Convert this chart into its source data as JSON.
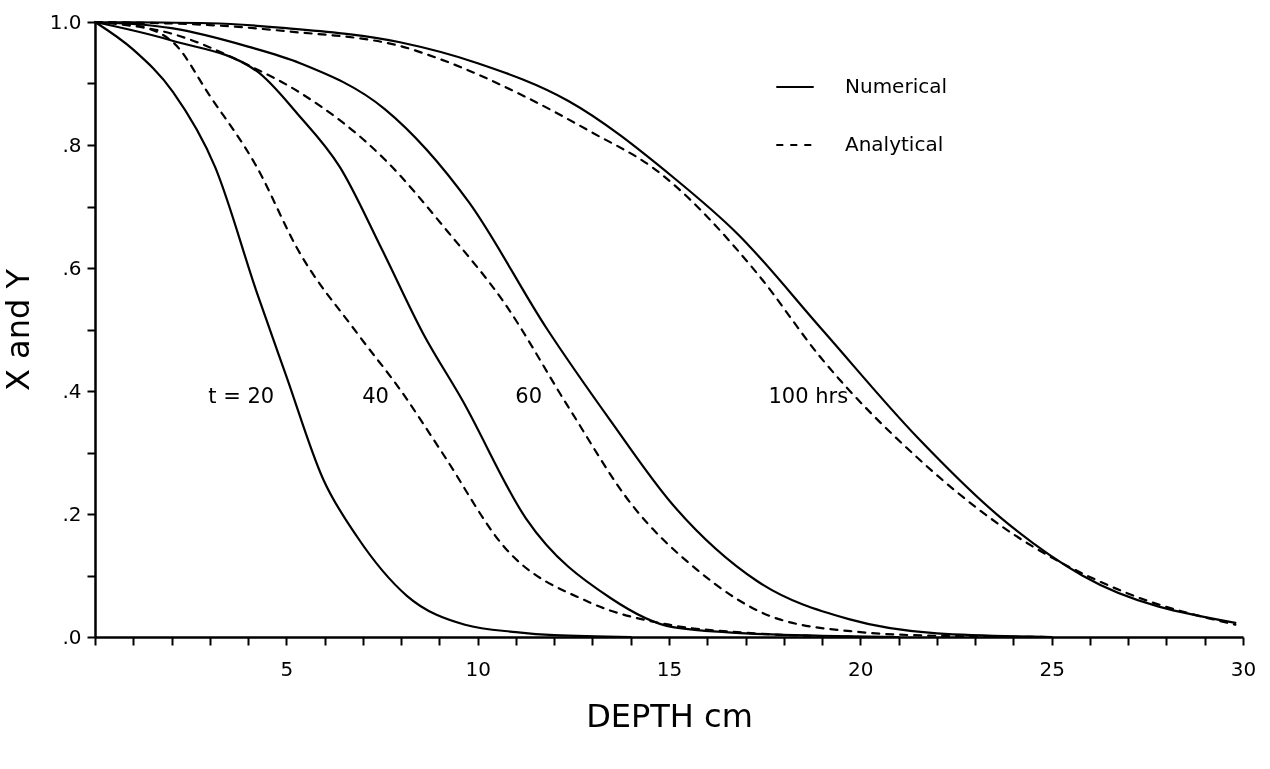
{
  "chart_data": {
    "type": "line",
    "xlabel": "DEPTH  cm",
    "ylabel": "X and Y",
    "legend": "top right",
    "xlim": [
      0,
      30
    ],
    "ylim": [
      0,
      1
    ],
    "xticks": [
      {
        "value": 0,
        "label": null
      },
      {
        "value": 1,
        "label": null
      },
      {
        "value": 2,
        "label": null
      },
      {
        "value": 3,
        "label": null
      },
      {
        "value": 4,
        "label": null
      },
      5,
      {
        "value": 6,
        "label": null
      },
      {
        "value": 7,
        "label": null
      },
      {
        "value": 8,
        "label": null
      },
      {
        "value": 9,
        "label": null
      },
      10,
      {
        "value": 11,
        "label": null
      },
      {
        "value": 12,
        "label": null
      },
      {
        "value": 13,
        "label": null
      },
      {
        "value": 14,
        "label": null
      },
      15,
      {
        "value": 16,
        "label": null
      },
      {
        "value": 17,
        "label": null
      },
      {
        "value": 18,
        "label": null
      },
      {
        "value": 19,
        "label": null
      },
      20,
      {
        "value": 21,
        "label": null
      },
      {
        "value": 22,
        "label": null
      },
      {
        "value": 23,
        "label": null
      },
      {
        "value": 24,
        "label": null
      },
      25,
      {
        "value": 26,
        "label": null
      },
      {
        "value": 27,
        "label": null
      },
      {
        "value": 28,
        "label": null
      },
      {
        "value": 29,
        "label": null
      },
      30
    ],
    "yticks": [
      {
        "value": 0,
        "label": ".0"
      },
      {
        "value": 0.1,
        "label": null
      },
      {
        "value": 0.2,
        "label": ".2"
      },
      {
        "value": 0.3,
        "label": null
      },
      {
        "value": 0.4,
        "label": ".4"
      },
      {
        "value": 0.5,
        "label": null
      },
      {
        "value": 0.6,
        "label": ".6"
      },
      {
        "value": 0.7,
        "label": null
      },
      {
        "value": 0.8,
        "label": ".8"
      },
      {
        "value": 0.9,
        "label": null
      },
      {
        "value": 1,
        "label": "1.0"
      }
    ],
    "series": [
      {
        "name": "Numerical",
        "color": "#000000",
        "line_style": "solid",
        "x": [
          0,
          1,
          2.04,
          3.14,
          4.23,
          4.99,
          5.96,
          6.85,
          8.15,
          9.67,
          11,
          12,
          14,
          null,
          0,
          2,
          4.23,
          5.3,
          6.4,
          7.5,
          8.57,
          9.6,
          11.26,
          13.48,
          15.1,
          17,
          19,
          21,
          null,
          0,
          2,
          4,
          5.36,
          7.58,
          9.77,
          11.8,
          13.48,
          15.1,
          17.3,
          19.7,
          22,
          25,
          null,
          0,
          3,
          5,
          7.97,
          10,
          12.36,
          15.1,
          16.8,
          18.97,
          21.5,
          23.65,
          25.8,
          29.8
        ],
        "values": [
          1,
          0.955,
          0.886,
          0.764,
          0.56,
          0.426,
          0.257,
          0.163,
          0.067,
          0.02,
          0.008,
          0.003,
          0,
          null,
          1,
          0.97,
          0.92,
          0.85,
          0.764,
          0.63,
          0.494,
          0.385,
          0.193,
          0.063,
          0.016,
          0.006,
          0.002,
          0,
          null,
          1,
          0.99,
          0.96,
          0.933,
          0.858,
          0.707,
          0.502,
          0.351,
          0.215,
          0.091,
          0.029,
          0.006,
          0,
          null,
          1,
          0.998,
          0.99,
          0.967,
          0.933,
          0.872,
          0.748,
          0.655,
          0.502,
          0.324,
          0.195,
          0.1,
          0.023
        ]
      },
      {
        "name": "Analytical",
        "color": "#000000",
        "line_style": "dashed",
        "x": [
          0,
          1,
          2.04,
          3,
          4.23,
          5.3,
          6.85,
          8,
          9.07,
          10.7,
          12.9,
          15,
          17,
          20,
          null,
          0,
          2.06,
          4,
          5.36,
          7.58,
          9.22,
          10.7,
          12.36,
          14.03,
          15.68,
          17.87,
          20,
          22,
          25,
          null,
          0,
          3,
          5,
          7.97,
          9,
          11.26,
          13,
          14.58,
          17.32,
          18.97,
          21.5,
          23.65,
          26.9,
          29.8
        ],
        "values": [
          1,
          0.995,
          0.967,
          0.88,
          0.764,
          0.63,
          0.494,
          0.4,
          0.3,
          0.146,
          0.057,
          0.02,
          0.007,
          0,
          null,
          1,
          0.98,
          0.93,
          0.885,
          0.776,
          0.659,
          0.543,
          0.375,
          0.215,
          0.112,
          0.029,
          0.008,
          0.002,
          0,
          null,
          1,
          0.995,
          0.985,
          0.961,
          0.94,
          0.878,
          0.82,
          0.763,
          0.59,
          0.454,
          0.291,
          0.182,
          0.073,
          0.02
        ]
      }
    ],
    "annotations": [
      {
        "text": "t = 20",
        "x": 5.1,
        "y": 0.39
      },
      {
        "text": "40",
        "x": 8.1,
        "y": 0.39
      },
      {
        "text": "60",
        "x": 12.1,
        "y": 0.39
      },
      {
        "text": "100 hrs",
        "x": 20.1,
        "y": 0.39
      }
    ]
  }
}
